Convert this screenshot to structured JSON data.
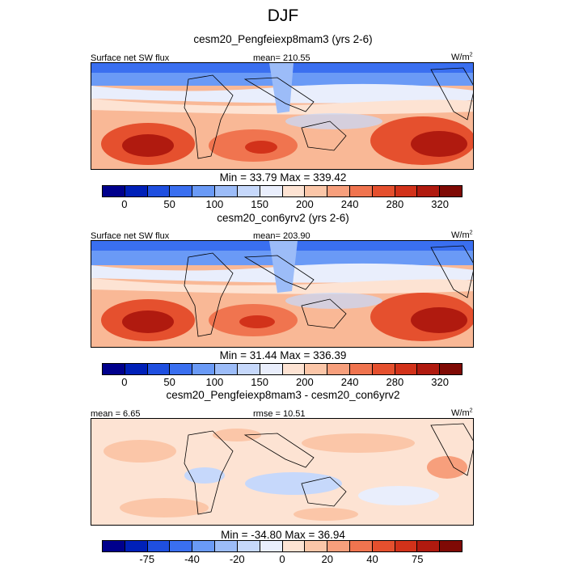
{
  "figure": {
    "title": "DJF"
  },
  "chart_data": [
    {
      "type": "heatmap",
      "title": "cesm20_Pengfeiexp8mam3 (yrs 2-6)",
      "left_label": "Surface net SW flux",
      "center_label": "mean= 210.55",
      "units_base": "W/m",
      "units_exp": "2",
      "minmax": "Min =  33.79 Max = 339.42",
      "mean": 210.55,
      "min": 33.79,
      "max": 339.42,
      "colorbar_ticks": [
        "0",
        "50",
        "100",
        "150",
        "200",
        "240",
        "280",
        "320"
      ],
      "colorbar_colors": [
        "#00008c",
        "#0020b8",
        "#1f4fe0",
        "#3a6ff0",
        "#6a9af6",
        "#9cbcf8",
        "#c6d8fb",
        "#e9eefc",
        "#fde3d3",
        "#fbc6a8",
        "#f79f7c",
        "#f0744f",
        "#e5502e",
        "#d2321a",
        "#b01a0f",
        "#7f0a05"
      ]
    },
    {
      "type": "heatmap",
      "title": "cesm20_con6yrv2 (yrs 2-6)",
      "left_label": "Surface net SW flux",
      "center_label": "mean= 203.90",
      "units_base": "W/m",
      "units_exp": "2",
      "minmax": "Min =  31.44 Max = 336.39",
      "mean": 203.9,
      "min": 31.44,
      "max": 336.39,
      "colorbar_ticks": [
        "0",
        "50",
        "100",
        "150",
        "200",
        "240",
        "280",
        "320"
      ],
      "colorbar_colors": [
        "#00008c",
        "#0020b8",
        "#1f4fe0",
        "#3a6ff0",
        "#6a9af6",
        "#9cbcf8",
        "#c6d8fb",
        "#e9eefc",
        "#fde3d3",
        "#fbc6a8",
        "#f79f7c",
        "#f0744f",
        "#e5502e",
        "#d2321a",
        "#b01a0f",
        "#7f0a05"
      ]
    },
    {
      "type": "heatmap",
      "title": "cesm20_Pengfeiexp8mam3 - cesm20_con6yrv2",
      "left_label": "mean =   6.65",
      "center_label": "rmse =  10.51",
      "units_base": "W/m",
      "units_exp": "2",
      "minmax": "Min = -34.80 Max =  36.94",
      "mean": 6.65,
      "rmse": 10.51,
      "min": -34.8,
      "max": 36.94,
      "colorbar_ticks": [
        "-75",
        "-40",
        "-20",
        "0",
        "20",
        "40",
        "75"
      ],
      "colorbar_colors": [
        "#00008c",
        "#0020b8",
        "#1f4fe0",
        "#3a6ff0",
        "#6a9af6",
        "#9cbcf8",
        "#c6d8fb",
        "#e9eefc",
        "#fde3d3",
        "#fbc6a8",
        "#f79f7c",
        "#f0744f",
        "#e5502e",
        "#d2321a",
        "#b01a0f",
        "#7f0a05"
      ]
    }
  ]
}
